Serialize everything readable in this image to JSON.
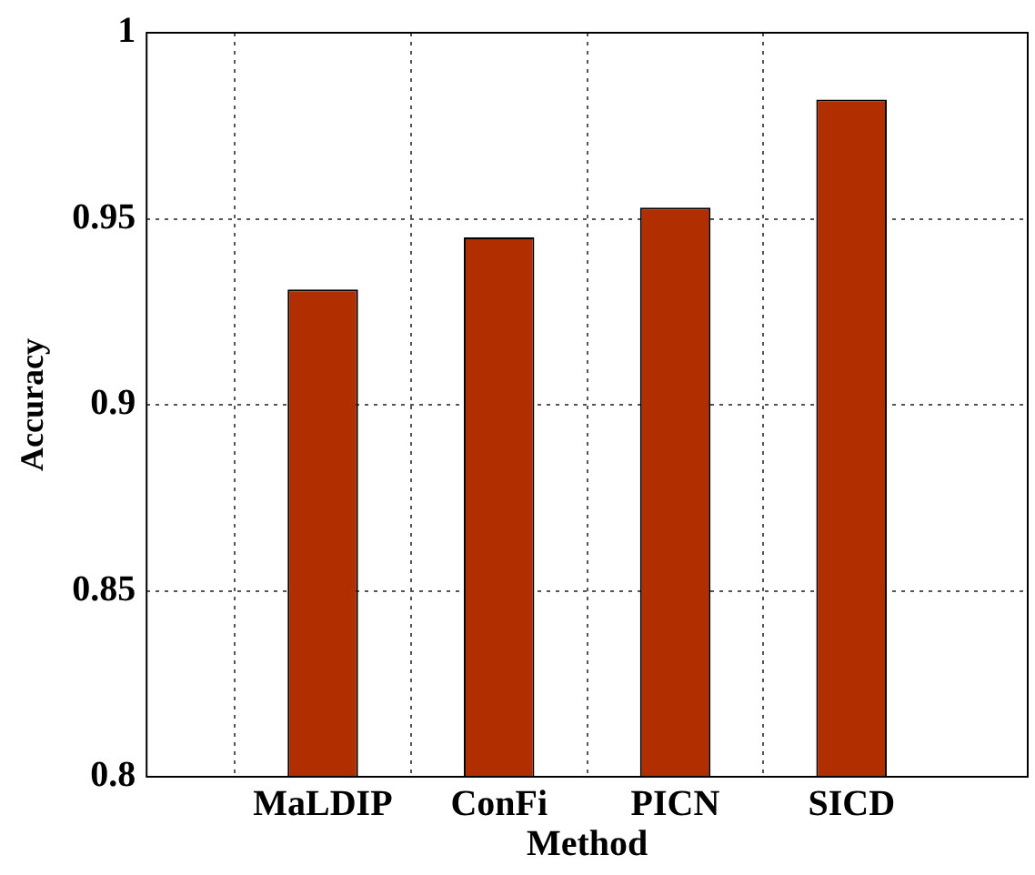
{
  "chart_data": {
    "type": "bar",
    "xlabel": "Method",
    "ylabel": "Accuracy",
    "categories": [
      null,
      "MaLDIP",
      "ConFi",
      "PICN",
      "SICD",
      null
    ],
    "values": [
      null,
      0.931,
      0.945,
      0.953,
      0.982,
      null
    ],
    "color": "#b02e00",
    "ylim": [
      0.8,
      1
    ],
    "yticks": [
      0.8,
      0.85,
      0.9,
      0.95,
      1
    ],
    "grid": true,
    "legend": false
  }
}
